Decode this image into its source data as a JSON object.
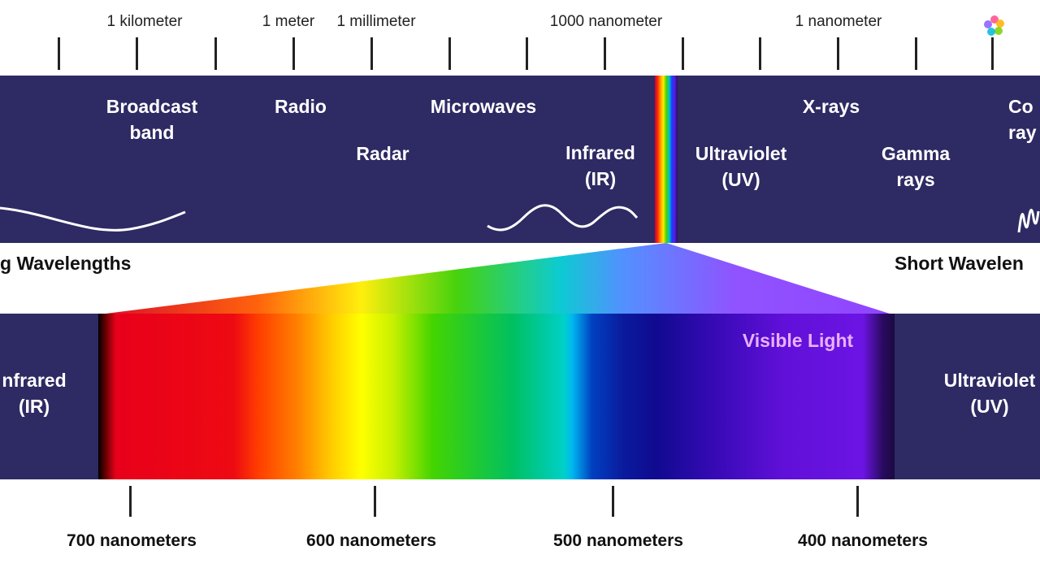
{
  "scale_labels": [
    "1 kilometer",
    "1 meter",
    "1 millimeter",
    "1000 nanometer",
    "1 nanometer"
  ],
  "spectrum_labels": [
    {
      "name": "broadcast-band-label",
      "text": "Broadcast\nband"
    },
    {
      "name": "radio-label",
      "text": "Radio"
    },
    {
      "name": "microwaves-label",
      "text": "Microwaves"
    },
    {
      "name": "radar-label",
      "text": "Radar"
    },
    {
      "name": "infrared-label",
      "text": "Infrared\n(IR)"
    },
    {
      "name": "ultraviolet-label",
      "text": "Ultraviolet\n(UV)"
    },
    {
      "name": "x-rays-label",
      "text": "X-rays"
    },
    {
      "name": "gamma-rays-label",
      "text": "Gamma\nrays"
    },
    {
      "name": "cosmic-rays-label",
      "text": "Co\nray"
    }
  ],
  "long_wavelengths_label": "g Wavelengths",
  "short_wavelengths_label": "Short Wavelen",
  "visible_light_label": "Visible Light",
  "lower_infrared_label": "nfrared\n(IR)",
  "lower_ultraviolet_label": "Ultraviolet\n(UV)",
  "nanometer_labels": [
    "700 nanometers",
    "600 nanometers",
    "500 nanometers",
    "400 nanometers"
  ],
  "logo_icon": "color-wheel-logo-icon",
  "colors": {
    "band": "#2e2a63",
    "visible_light_text": "#e8a8ff"
  }
}
